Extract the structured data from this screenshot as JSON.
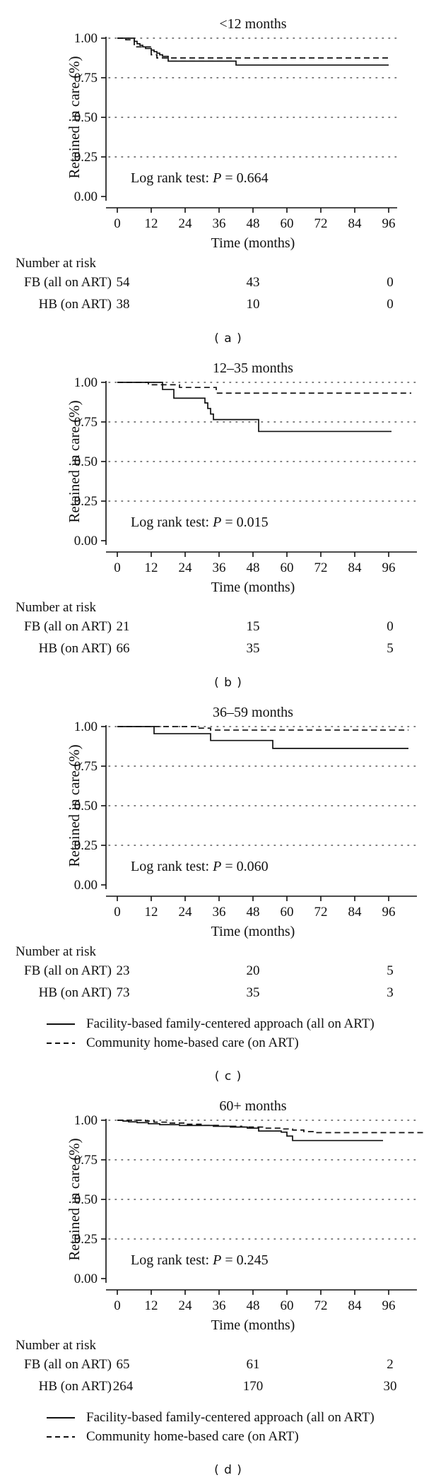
{
  "figure": {
    "ylabel": "Retained in care (%)",
    "xlabel": "Time (months)",
    "ytick_labels": [
      "1.00",
      "0.75",
      "0.50",
      "0.25",
      "0.00"
    ],
    "risk_header": "Number at risk",
    "panel_letters": [
      "( a )",
      "( b )",
      "( c )",
      "( d )"
    ],
    "legend": [
      {
        "style": "solid",
        "label": "Facility-based family-centered approach  (all on ART)"
      },
      {
        "style": "dashed",
        "label": "Community home-based care (on ART)"
      }
    ],
    "line_color": "#111111",
    "background": "#ffffff"
  },
  "chart_data": [
    {
      "type": "line",
      "subtype": "kaplan-meier-step",
      "title": "<12 months",
      "xlabel": "Time (months)",
      "ylabel": "Retained in care (%)",
      "log_rank_prefix": "Log rank test: ",
      "log_rank_symbol": "P",
      "log_rank_rest": " = 0.664",
      "xlim": [
        0,
        99
      ],
      "ylim": [
        0,
        1.0
      ],
      "xticks": [
        0,
        12,
        24,
        36,
        48,
        60,
        72,
        84,
        96
      ],
      "yticks": [
        1.0,
        0.75,
        0.5,
        0.25,
        0
      ],
      "grid": "dotted-horizontal",
      "series": [
        {
          "name": "FB (all on ART)",
          "style": "solid",
          "end": 96,
          "points": [
            [
              0,
              1.0
            ],
            [
              6,
              0.98
            ],
            [
              7,
              0.965
            ],
            [
              8,
              0.955
            ],
            [
              9,
              0.945
            ],
            [
              10,
              0.935
            ],
            [
              12,
              0.925
            ],
            [
              13,
              0.915
            ],
            [
              14,
              0.905
            ],
            [
              15,
              0.895
            ],
            [
              16,
              0.885
            ],
            [
              18,
              0.855
            ],
            [
              42,
              0.83
            ]
          ]
        },
        {
          "name": "HB (on ART)",
          "style": "dashed",
          "end": 96,
          "points": [
            [
              0,
              1.0
            ],
            [
              3,
              0.99
            ],
            [
              6,
              0.945
            ],
            [
              12,
              0.895
            ],
            [
              14,
              0.875
            ]
          ]
        }
      ],
      "number_at_risk": {
        "times": [
          0,
          48,
          96
        ],
        "rows": [
          {
            "label": "FB (all on ART)",
            "values": [
              "54",
              "43",
              "0"
            ]
          },
          {
            "label": "HB (on ART)",
            "values": [
              "38",
              "10",
              "0"
            ]
          }
        ]
      }
    },
    {
      "type": "line",
      "subtype": "kaplan-meier-step",
      "title": "12–35 months",
      "xlabel": "Time (months)",
      "ylabel": "Retained in care (%)",
      "log_rank_prefix": "Log rank test: ",
      "log_rank_symbol": "P",
      "log_rank_rest": " = 0.015",
      "xlim": [
        0,
        106
      ],
      "ylim": [
        0,
        1.0
      ],
      "xticks": [
        0,
        12,
        24,
        36,
        48,
        60,
        72,
        84,
        96
      ],
      "yticks": [
        1.0,
        0.75,
        0.5,
        0.25,
        0
      ],
      "grid": "dotted-horizontal",
      "series": [
        {
          "name": "FB (all on ART)",
          "style": "solid",
          "end": 97,
          "points": [
            [
              0,
              1.0
            ],
            [
              16,
              0.955
            ],
            [
              20,
              0.9
            ],
            [
              31,
              0.87
            ],
            [
              32,
              0.835
            ],
            [
              33,
              0.8
            ],
            [
              34,
              0.765
            ],
            [
              50,
              0.69
            ]
          ]
        },
        {
          "name": "HB (on ART)",
          "style": "dashed",
          "end": 104,
          "points": [
            [
              0,
              1.0
            ],
            [
              11,
              0.985
            ],
            [
              22,
              0.968
            ],
            [
              35,
              0.932
            ]
          ]
        }
      ],
      "number_at_risk": {
        "times": [
          0,
          48,
          96
        ],
        "rows": [
          {
            "label": "FB (all on ART)",
            "values": [
              "21",
              "15",
              "0"
            ]
          },
          {
            "label": "HB (on ART)",
            "values": [
              "66",
              "35",
              "5"
            ]
          }
        ]
      }
    },
    {
      "type": "line",
      "subtype": "kaplan-meier-step",
      "title": "36–59 months",
      "xlabel": "Time (months)",
      "ylabel": "Retained in care (%)",
      "log_rank_prefix": "Log rank test: ",
      "log_rank_symbol": "P",
      "log_rank_rest": " = 0.060",
      "xlim": [
        0,
        106
      ],
      "ylim": [
        0,
        1.0
      ],
      "xticks": [
        0,
        12,
        24,
        36,
        48,
        60,
        72,
        84,
        96
      ],
      "yticks": [
        1.0,
        0.75,
        0.5,
        0.25,
        0
      ],
      "grid": "dotted-horizontal",
      "series": [
        {
          "name": "FB (all on ART)",
          "style": "solid",
          "end": 103,
          "points": [
            [
              0,
              1.0
            ],
            [
              13,
              0.955
            ],
            [
              33,
              0.912
            ],
            [
              55,
              0.862
            ]
          ]
        },
        {
          "name": "HB (on ART)",
          "style": "dashed",
          "end": 103,
          "points": [
            [
              0,
              1.0
            ],
            [
              28,
              0.99
            ],
            [
              33,
              0.978
            ]
          ]
        }
      ],
      "number_at_risk": {
        "times": [
          0,
          48,
          96
        ],
        "rows": [
          {
            "label": "FB (all on ART)",
            "values": [
              "23",
              "20",
              "5"
            ]
          },
          {
            "label": "HB (on ART)",
            "values": [
              "73",
              "35",
              "3"
            ]
          }
        ]
      }
    },
    {
      "type": "line",
      "subtype": "kaplan-meier-step",
      "title": "60+ months",
      "xlabel": "Time (months)",
      "ylabel": "Retained in care (%)",
      "log_rank_prefix": "Log rank test: ",
      "log_rank_symbol": "P",
      "log_rank_rest": " = 0.245",
      "xlim": [
        0,
        106
      ],
      "ylim": [
        0,
        1.0
      ],
      "xticks": [
        0,
        12,
        24,
        36,
        48,
        60,
        72,
        84,
        96
      ],
      "yticks": [
        1.0,
        0.75,
        0.5,
        0.25,
        0
      ],
      "grid": "dotted-horizontal",
      "series": [
        {
          "name": "FB (all on ART)",
          "style": "solid",
          "end": 94,
          "points": [
            [
              0,
              1.0
            ],
            [
              2,
              0.995
            ],
            [
              4,
              0.99
            ],
            [
              7,
              0.985
            ],
            [
              11,
              0.978
            ],
            [
              15,
              0.972
            ],
            [
              22,
              0.967
            ],
            [
              34,
              0.962
            ],
            [
              40,
              0.957
            ],
            [
              46,
              0.95
            ],
            [
              50,
              0.932
            ],
            [
              58,
              0.925
            ],
            [
              60,
              0.9
            ],
            [
              62,
              0.872
            ]
          ]
        },
        {
          "name": "HB (on ART)",
          "style": "dashed",
          "end": 110,
          "points": [
            [
              0,
              1.0
            ],
            [
              10,
              0.995
            ],
            [
              13,
              0.988
            ],
            [
              18,
              0.982
            ],
            [
              24,
              0.975
            ],
            [
              30,
              0.968
            ],
            [
              36,
              0.962
            ],
            [
              44,
              0.957
            ],
            [
              52,
              0.95
            ],
            [
              58,
              0.945
            ],
            [
              62,
              0.938
            ],
            [
              66,
              0.928
            ],
            [
              70,
              0.922
            ]
          ]
        }
      ],
      "number_at_risk": {
        "times": [
          0,
          48,
          96
        ],
        "rows": [
          {
            "label": "FB (all on ART)",
            "values": [
              "65",
              "61",
              "2"
            ]
          },
          {
            "label": "HB (on ART)",
            "values": [
              "264",
              "170",
              "30"
            ]
          }
        ]
      }
    }
  ]
}
